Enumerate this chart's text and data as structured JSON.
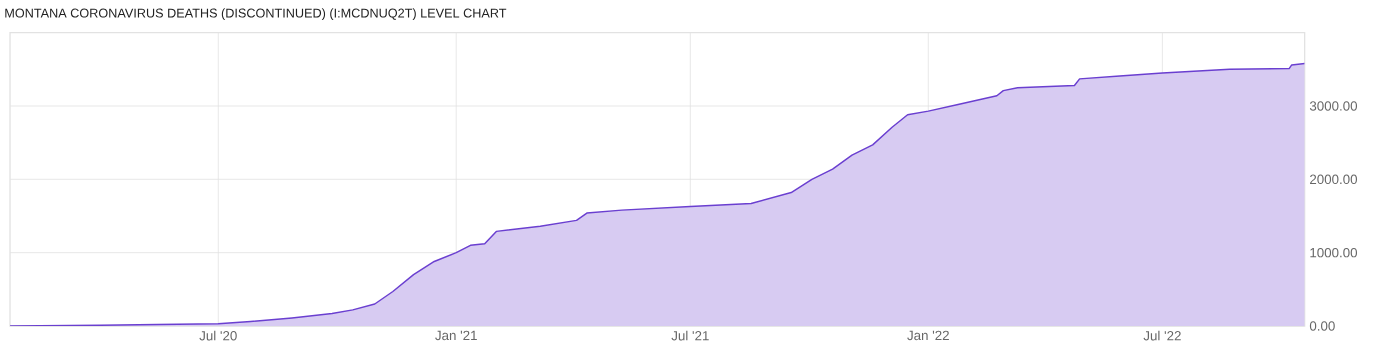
{
  "chart_data": {
    "type": "area",
    "title": "MONTANA CORONAVIRUS DEATHS (DISCONTINUED) (I:MCDNUQ2T) LEVEL CHART",
    "x": [
      "2020-01-22",
      "2020-04-01",
      "2020-05-15",
      "2020-07-01",
      "2020-07-26",
      "2020-08-27",
      "2020-09-27",
      "2020-10-13",
      "2020-10-30",
      "2020-11-13",
      "2020-11-29",
      "2020-12-15",
      "2021-01-01",
      "2021-01-12",
      "2021-01-23",
      "2021-02-01",
      "2021-03-07",
      "2021-04-04",
      "2021-04-12",
      "2021-05-09",
      "2021-07-01",
      "2021-08-17",
      "2021-09-17",
      "2021-10-03",
      "2021-10-19",
      "2021-11-03",
      "2021-11-19",
      "2021-12-04",
      "2021-12-16",
      "2022-01-01",
      "2022-01-24",
      "2022-02-23",
      "2022-02-28",
      "2022-03-11",
      "2022-04-24",
      "2022-04-28",
      "2022-05-29",
      "2022-07-01",
      "2022-08-22",
      "2022-10-07",
      "2022-10-09",
      "2022-10-19"
    ],
    "series": [
      {
        "color": "#6a3fd0",
        "values": [
          0,
          10,
          20,
          30,
          60,
          110,
          170,
          220,
          300,
          470,
          700,
          880,
          1000,
          1100,
          1120,
          1290,
          1360,
          1440,
          1540,
          1580,
          1630,
          1670,
          1820,
          2000,
          2140,
          2330,
          2470,
          2710,
          2880,
          2930,
          3020,
          3140,
          3210,
          3250,
          3280,
          3370,
          3410,
          3450,
          3500,
          3510,
          3560,
          3580
        ]
      }
    ],
    "xlim": [
      "2020-01-22",
      "2022-10-19"
    ],
    "xticks": [
      {
        "value": "2020-07-01",
        "label": "Jul '20"
      },
      {
        "value": "2021-01-01",
        "label": "Jan '21"
      },
      {
        "value": "2021-07-01",
        "label": "Jul '21"
      },
      {
        "value": "2022-01-01",
        "label": "Jan '22"
      },
      {
        "value": "2022-07-01",
        "label": "Jul '22"
      }
    ],
    "ylim": [
      0,
      4000
    ],
    "yticks": [
      {
        "value": 0,
        "label": "0.00"
      },
      {
        "value": 1000,
        "label": "1000.00"
      },
      {
        "value": 2000,
        "label": "2000.00"
      },
      {
        "value": 3000,
        "label": "3000.00"
      }
    ],
    "grid": true
  }
}
